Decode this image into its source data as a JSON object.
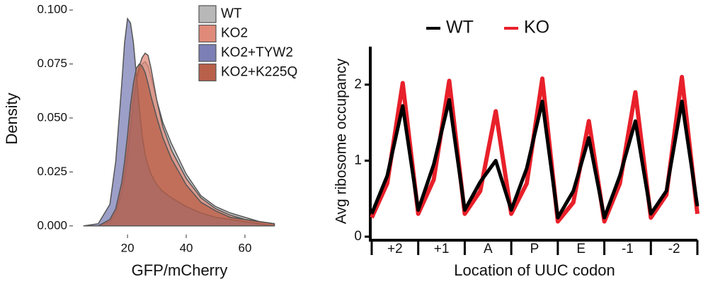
{
  "chart_data": [
    {
      "type": "area",
      "xlabel": "GFP/mCherry",
      "ylabel": "Density",
      "x": [
        5,
        10,
        14,
        16,
        18,
        19,
        20,
        21,
        22,
        23,
        24,
        25,
        26,
        27,
        28,
        30,
        32,
        35,
        40,
        45,
        50,
        55,
        60,
        65,
        70
      ],
      "series": [
        {
          "name": "WT",
          "color": "#b8b8b8",
          "values": [
            0,
            0,
            0.002,
            0.006,
            0.016,
            0.024,
            0.034,
            0.046,
            0.057,
            0.066,
            0.072,
            0.075,
            0.076,
            0.074,
            0.069,
            0.058,
            0.048,
            0.038,
            0.024,
            0.014,
            0.009,
            0.006,
            0.004,
            0.002,
            0.001
          ]
        },
        {
          "name": "KO2",
          "color": "#e08a7a",
          "values": [
            0,
            0,
            0.002,
            0.006,
            0.015,
            0.022,
            0.032,
            0.045,
            0.058,
            0.068,
            0.074,
            0.078,
            0.08,
            0.079,
            0.073,
            0.058,
            0.046,
            0.035,
            0.022,
            0.013,
            0.008,
            0.005,
            0.003,
            0.002,
            0.001
          ]
        },
        {
          "name": "KO2+TYW2",
          "color": "#7b7fb5",
          "values": [
            0,
            0.001,
            0.01,
            0.03,
            0.065,
            0.085,
            0.096,
            0.094,
            0.085,
            0.07,
            0.055,
            0.042,
            0.033,
            0.028,
            0.024,
            0.019,
            0.016,
            0.013,
            0.009,
            0.006,
            0.004,
            0.003,
            0.002,
            0.001,
            0
          ]
        },
        {
          "name": "KO2+K225Q",
          "color": "#b8604a",
          "values": [
            0,
            0,
            0.003,
            0.008,
            0.02,
            0.03,
            0.042,
            0.056,
            0.066,
            0.073,
            0.075,
            0.074,
            0.071,
            0.066,
            0.06,
            0.05,
            0.041,
            0.031,
            0.019,
            0.011,
            0.007,
            0.004,
            0.003,
            0.002,
            0.001
          ]
        }
      ],
      "xlim": [
        1.4,
        74
      ],
      "xticks": [
        20,
        40,
        60
      ],
      "ylim": [
        -0.004,
        0.103
      ],
      "yticks": [
        {
          "value": 0,
          "label": "0.000"
        },
        {
          "value": 0.025,
          "label": "0.025"
        },
        {
          "value": 0.05,
          "label": "0.050"
        },
        {
          "value": 0.075,
          "label": "0.075"
        },
        {
          "value": 0.1,
          "label": "0.100"
        }
      ],
      "legend": "top-right"
    },
    {
      "type": "line",
      "xlabel": "Location of UUC codon",
      "ylabel": "Avg ribosome occupancy",
      "categories": [
        "+2",
        "+1",
        "A",
        "P",
        "E",
        "-1",
        "-2"
      ],
      "x": [
        0,
        1,
        2,
        3,
        4,
        5,
        6,
        7,
        8,
        9,
        10,
        11,
        12,
        13,
        14,
        15,
        16,
        17,
        18,
        19,
        20,
        21
      ],
      "series": [
        {
          "name": "WT",
          "color": "#000000",
          "values": [
            0.3,
            0.8,
            1.72,
            0.35,
            0.95,
            1.8,
            0.35,
            0.72,
            1.0,
            0.35,
            0.9,
            1.78,
            0.25,
            0.6,
            1.3,
            0.25,
            0.8,
            1.52,
            0.3,
            0.6,
            1.78,
            0.4
          ]
        },
        {
          "name": "KO",
          "color": "#e8202a",
          "values": [
            0.25,
            0.7,
            2.02,
            0.3,
            0.75,
            2.05,
            0.3,
            0.6,
            1.65,
            0.3,
            0.7,
            2.08,
            0.2,
            0.45,
            1.52,
            0.2,
            0.7,
            1.9,
            0.25,
            0.55,
            2.1,
            0.3
          ]
        }
      ],
      "xlim": [
        0,
        21
      ],
      "ylim": [
        0,
        2.5
      ],
      "yticks": [
        0,
        1,
        2
      ],
      "legend": "top"
    }
  ]
}
